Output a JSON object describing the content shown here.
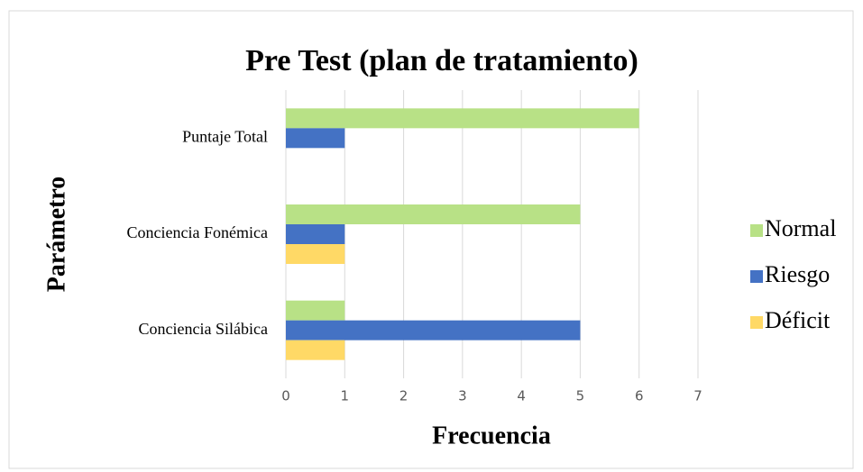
{
  "chart_data": {
    "type": "bar",
    "orientation": "horizontal",
    "title": "Pre Test (plan de tratamiento)",
    "x_label": "Frecuencia",
    "y_label": "Parámetro",
    "categories": [
      "Conciencia Silábica",
      "Conciencia Fonémica",
      "Puntaje Total"
    ],
    "series": [
      {
        "name": "Normal",
        "color": "#b8e186",
        "values": [
          1,
          5,
          6
        ]
      },
      {
        "name": "Riesgo",
        "color": "#4472c4",
        "values": [
          5,
          1,
          1
        ]
      },
      {
        "name": "Déficit",
        "color": "#ffd966",
        "values": [
          1,
          1,
          0
        ]
      }
    ],
    "xlim": [
      0,
      7
    ],
    "xticks": [
      0,
      1,
      2,
      3,
      4,
      5,
      6,
      7
    ],
    "grid": true,
    "legend": "right"
  }
}
